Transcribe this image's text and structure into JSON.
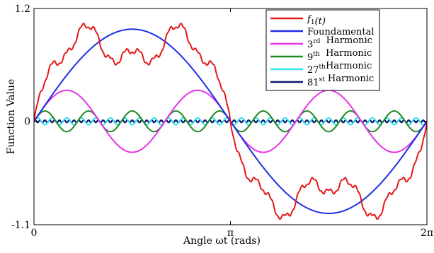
{
  "chart_data": {
    "type": "line",
    "title": "",
    "xlabel": "Angle  ωt  (rads)",
    "ylabel": "Function Value",
    "xlim": [
      0,
      6.2832
    ],
    "ylim": [
      -1.1,
      1.2
    ],
    "x_ticks": [
      {
        "value": 0,
        "label": "0"
      },
      {
        "value": 3.1416,
        "label": "π"
      },
      {
        "value": 6.2832,
        "label": "2π"
      }
    ],
    "y_ticks": [
      {
        "value": 1.2,
        "label": "1.2"
      },
      {
        "value": 0,
        "label": "0"
      },
      {
        "value": -1.1,
        "label": "-1.1"
      }
    ],
    "grid": false,
    "legend_position": "top-right",
    "series": [
      {
        "key": "f1",
        "name": "f₁(t)",
        "legend_parts": [
          {
            "t": "f",
            "style": "italic"
          },
          {
            "t": "1",
            "style": "sub"
          },
          {
            "t": "(t)",
            "style": "italic"
          }
        ],
        "color": "#e41a1a",
        "sum_of_harmonics": [
          1,
          3,
          9,
          27,
          81
        ],
        "description_values": "sum of the listed harmonics"
      },
      {
        "key": "h1",
        "name": "Foundamental",
        "legend_parts": [
          {
            "t": "Foundamental",
            "style": "normal"
          }
        ],
        "color": "#1e2ee6",
        "harmonic": 1,
        "amplitude": 0.98
      },
      {
        "key": "h3",
        "name": "3rd  Harmonic",
        "legend_parts": [
          {
            "t": "3",
            "style": "normal"
          },
          {
            "t": "rd",
            "style": "sup"
          },
          {
            "t": "  Harmonic",
            "style": "normal"
          }
        ],
        "color": "#e633e6",
        "harmonic": 3,
        "amplitude": 0.33
      },
      {
        "key": "h9",
        "name": "9th  Harmonic",
        "legend_parts": [
          {
            "t": "9",
            "style": "normal"
          },
          {
            "t": "th",
            "style": "sup"
          },
          {
            "t": "  Harmonic",
            "style": "normal"
          }
        ],
        "color": "#1f8a1f",
        "harmonic": 9,
        "amplitude": 0.11
      },
      {
        "key": "h27",
        "name": "27th Harmonic",
        "legend_parts": [
          {
            "t": "27",
            "style": "normal"
          },
          {
            "t": "th",
            "style": "sup"
          },
          {
            "t": "Harmonic",
            "style": "normal"
          }
        ],
        "color": "#33e6f0",
        "harmonic": 27,
        "amplitude": 0.037
      },
      {
        "key": "h81",
        "name": "81st Harmonic",
        "legend_parts": [
          {
            "t": "81",
            "style": "normal"
          },
          {
            "t": "st",
            "style": "sup"
          },
          {
            "t": " Harmonic",
            "style": "normal"
          }
        ],
        "color": "#0a1a6e",
        "harmonic": 81,
        "amplitude": 0.012
      }
    ]
  }
}
